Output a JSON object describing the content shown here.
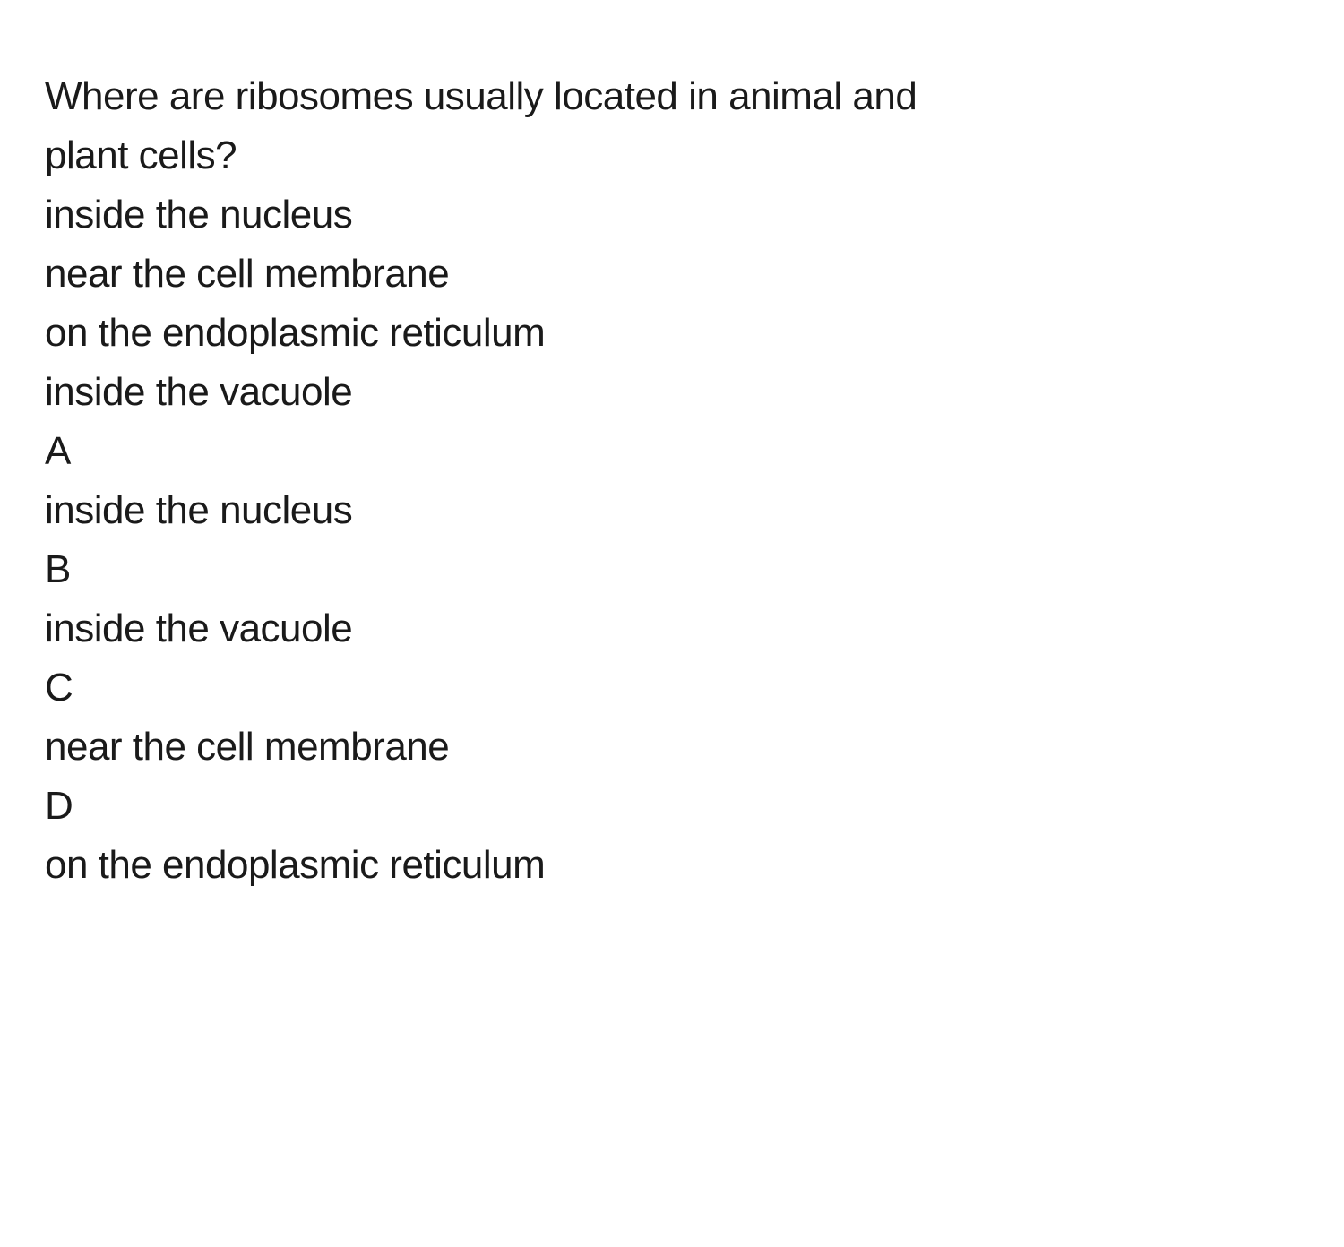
{
  "text_color": "#1a1a1a",
  "background_color": "#ffffff",
  "font_size": 44,
  "question": {
    "line1": "Where are ribosomes usually located in animal and",
    "line2": "plant cells?"
  },
  "options": {
    "option1": "inside the nucleus",
    "option2": "near the cell membrane",
    "option3": "on the endoplasmic reticulum",
    "option4": "inside the vacuole"
  },
  "answers": {
    "a": {
      "letter": "A",
      "text": "inside the nucleus"
    },
    "b": {
      "letter": "B",
      "text": "inside the vacuole"
    },
    "c": {
      "letter": "C",
      "text": "near the cell membrane"
    },
    "d": {
      "letter": "D",
      "text": "on the endoplasmic reticulum"
    }
  }
}
